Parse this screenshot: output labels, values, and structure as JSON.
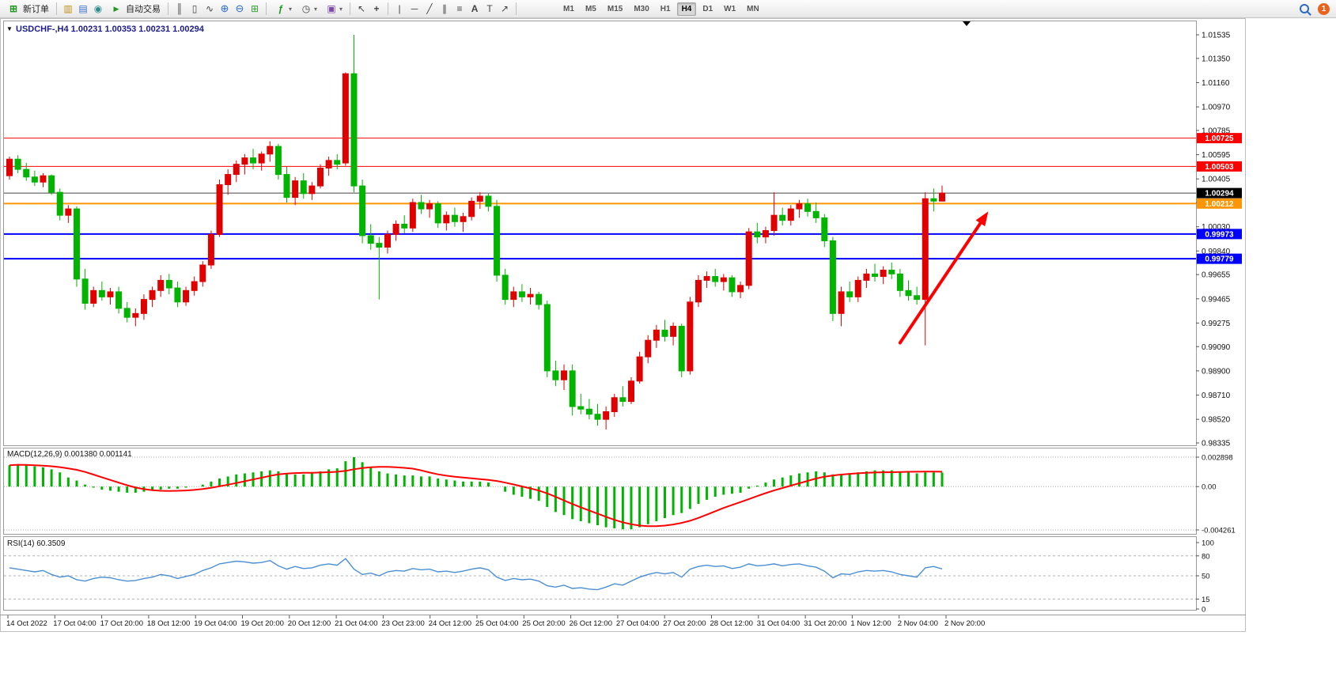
{
  "toolbar": {
    "new_order_label": "新订单",
    "autotrade_label": "自动交易",
    "notification_count": "1",
    "timeframes": [
      "M1",
      "M5",
      "M15",
      "M30",
      "H1",
      "H4",
      "D1",
      "W1",
      "MN"
    ],
    "active_timeframe": "H4",
    "icon_glyphs": {
      "new_order": "⊞",
      "market_watch": "▥",
      "data_window": "▤",
      "navigator": "◉",
      "autotrade": "▶",
      "bar_chart": "║",
      "candle_chart": "▯",
      "line_chart": "∿",
      "zoom_in": "⊕",
      "zoom_out": "⊖",
      "tile_windows": "⊞",
      "indicators": "ƒ",
      "periods": "◷",
      "templates": "▣",
      "cursor": "↖",
      "crosshair": "+",
      "vline": "|",
      "hline": "─",
      "trendline": "╱",
      "channel": "∥",
      "fibonacci": "≡",
      "text": "A",
      "text_label": "T",
      "arrows": "↗",
      "caret": "▾"
    }
  },
  "chart": {
    "symbol": "USDCHF-",
    "period": "H4",
    "collapse_icon_glyph": "▼",
    "ohlc": {
      "open": "1.00231",
      "high": "1.00353",
      "low": "1.00231",
      "close": "1.00294"
    }
  },
  "macd": {
    "name": "MACD(12,26,9)",
    "value_main": "0.001380",
    "value_signal": "0.001141",
    "scale": [
      {
        "label": "0.002898",
        "value": 0.002898
      },
      {
        "label": "0.00",
        "value": 0
      },
      {
        "label": "-0.004261",
        "value": -0.004261
      }
    ]
  },
  "rsi": {
    "name": "RSI(14)",
    "value": "60.3509",
    "scale": [
      {
        "label": "100",
        "value": 100
      },
      {
        "label": "80",
        "value": 80
      },
      {
        "label": "50",
        "value": 50
      },
      {
        "label": "15",
        "value": 15
      },
      {
        "label": "0",
        "value": 0
      }
    ]
  },
  "chart_data": {
    "type": "candlestick",
    "symbol": "USDCHF-",
    "timeframe": "H4",
    "ylim": [
      0.98335,
      1.01535
    ],
    "up_color": "#e00000",
    "down_color": "#00b400",
    "current_price": {
      "value": 1.00294,
      "label": "1.00294",
      "badge_color": "#000000"
    },
    "hlines": [
      {
        "price": 1.00725,
        "label": "1.00725",
        "color": "#ff0000",
        "width": 1
      },
      {
        "price": 1.00503,
        "label": "1.00503",
        "color": "#ff0000",
        "width": 1
      },
      {
        "price": 1.00212,
        "label": "1.00212",
        "color": "#ff9500",
        "width": 2
      },
      {
        "price": 0.99973,
        "label": "0.99973",
        "color": "#0000ff",
        "width": 2
      },
      {
        "price": 0.99779,
        "label": "0.99779",
        "color": "#0000ff",
        "width": 2
      }
    ],
    "price_scale_labels": [
      "1.01535",
      "1.01350",
      "1.01160",
      "1.00970",
      "1.00785",
      "1.00595",
      "1.00405",
      "1.00220",
      "1.00030",
      "0.99840",
      "0.99655",
      "0.99465",
      "0.99275",
      "0.99090",
      "0.98900",
      "0.98710",
      "0.98520",
      "0.98335"
    ],
    "x_labels": [
      "14 Oct 2022",
      "17 Oct 04:00",
      "17 Oct 20:00",
      "18 Oct 12:00",
      "19 Oct 04:00",
      "19 Oct 20:00",
      "20 Oct 12:00",
      "21 Oct 04:00",
      "23 Oct 23:00",
      "24 Oct 12:00",
      "25 Oct 04:00",
      "25 Oct 20:00",
      "26 Oct 12:00",
      "27 Oct 04:00",
      "27 Oct 20:00",
      "28 Oct 12:00",
      "31 Oct 04:00",
      "31 Oct 20:00",
      "1 Nov 12:00",
      "2 Nov 04:00",
      "2 Nov 20:00"
    ],
    "candles_ohlc": [
      [
        1.0043,
        1.0058,
        1.004,
        1.0056
      ],
      [
        1.0056,
        1.0059,
        1.0045,
        1.0048
      ],
      [
        1.0048,
        1.0053,
        1.0039,
        1.0042
      ],
      [
        1.0042,
        1.0047,
        1.0035,
        1.0038
      ],
      [
        1.0038,
        1.0045,
        1.0034,
        1.0043
      ],
      [
        1.0043,
        1.0044,
        1.0028,
        1.003
      ],
      [
        1.003,
        1.0033,
        1.0008,
        1.0012
      ],
      [
        1.0012,
        1.002,
        1.0006,
        1.0017
      ],
      [
        1.0017,
        1.0019,
        0.9956,
        0.9962
      ],
      [
        0.9962,
        0.997,
        0.9938,
        0.9943
      ],
      [
        0.9943,
        0.9956,
        0.994,
        0.9953
      ],
      [
        0.9953,
        0.996,
        0.9945,
        0.9948
      ],
      [
        0.9948,
        0.9955,
        0.9942,
        0.9952
      ],
      [
        0.9952,
        0.9956,
        0.9935,
        0.9939
      ],
      [
        0.9939,
        0.9944,
        0.9928,
        0.9932
      ],
      [
        0.9932,
        0.9939,
        0.9925,
        0.9935
      ],
      [
        0.9935,
        0.995,
        0.993,
        0.9946
      ],
      [
        0.9946,
        0.9956,
        0.994,
        0.9953
      ],
      [
        0.9953,
        0.9965,
        0.9948,
        0.9961
      ],
      [
        0.9961,
        0.9966,
        0.995,
        0.9955
      ],
      [
        0.9955,
        0.996,
        0.994,
        0.9944
      ],
      [
        0.9944,
        0.9956,
        0.9941,
        0.9953
      ],
      [
        0.9953,
        0.9964,
        0.9949,
        0.996
      ],
      [
        0.996,
        0.9976,
        0.9956,
        0.9973
      ],
      [
        0.9973,
        1.0,
        0.997,
        0.9997
      ],
      [
        0.9997,
        1.004,
        0.9995,
        1.0036
      ],
      [
        1.0036,
        1.0048,
        1.0028,
        1.0044
      ],
      [
        1.0044,
        1.0055,
        1.0038,
        1.0052
      ],
      [
        1.0052,
        1.006,
        1.0044,
        1.0057
      ],
      [
        1.0057,
        1.0064,
        1.0048,
        1.0053
      ],
      [
        1.0053,
        1.0062,
        1.0047,
        1.006
      ],
      [
        1.006,
        1.007,
        1.0054,
        1.0066
      ],
      [
        1.0066,
        1.0068,
        1.004,
        1.0044
      ],
      [
        1.0044,
        1.005,
        1.0022,
        1.0026
      ],
      [
        1.0026,
        1.0042,
        1.002,
        1.0039
      ],
      [
        1.0039,
        1.0045,
        1.0025,
        1.0029
      ],
      [
        1.0029,
        1.0038,
        1.0024,
        1.0035
      ],
      [
        1.0035,
        1.0052,
        1.0033,
        1.0049
      ],
      [
        1.0049,
        1.0058,
        1.0043,
        1.0055
      ],
      [
        1.0055,
        1.006,
        1.0048,
        1.0052
      ],
      [
        1.0053,
        1.0124,
        1.0051,
        1.0123
      ],
      [
        1.0123,
        1.01535,
        1.003,
        1.0035
      ],
      [
        1.0035,
        1.004,
        0.999,
        0.9996
      ],
      [
        0.9996,
        1.0005,
        0.9985,
        0.999
      ],
      [
        0.999,
        0.9995,
        0.9946,
        0.9987
      ],
      [
        0.9987,
        1.0,
        0.9982,
        0.9997
      ],
      [
        0.9997,
        1.0008,
        0.9992,
        1.0005
      ],
      [
        1.0005,
        1.0012,
        0.9998,
        1.0002
      ],
      [
        1.0002,
        1.0025,
        0.9999,
        1.0022
      ],
      [
        1.0022,
        1.0028,
        1.0013,
        1.0017
      ],
      [
        1.0017,
        1.0024,
        1.001,
        1.0021
      ],
      [
        1.0021,
        1.0023,
        1.0002,
        1.0006
      ],
      [
        1.0006,
        1.0015,
        1.0,
        1.0012
      ],
      [
        1.0012,
        1.0018,
        1.0003,
        1.0007
      ],
      [
        1.0007,
        1.0014,
        0.9999,
        1.0011
      ],
      [
        1.0011,
        1.0026,
        1.0008,
        1.0023
      ],
      [
        1.0023,
        1.003,
        1.0017,
        1.0027
      ],
      [
        1.0027,
        1.0029,
        1.0015,
        1.0019
      ],
      [
        1.0019,
        1.0024,
        0.996,
        0.9965
      ],
      [
        0.9965,
        0.997,
        0.9942,
        0.9946
      ],
      [
        0.9946,
        0.9956,
        0.994,
        0.9952
      ],
      [
        0.9952,
        0.9958,
        0.9944,
        0.9948
      ],
      [
        0.9948,
        0.9955,
        0.9942,
        0.995
      ],
      [
        0.995,
        0.9952,
        0.9938,
        0.9942
      ],
      [
        0.9942,
        0.9945,
        0.9885,
        0.989
      ],
      [
        0.989,
        0.9898,
        0.9878,
        0.9883
      ],
      [
        0.9883,
        0.9895,
        0.9875,
        0.989
      ],
      [
        0.989,
        0.9895,
        0.9855,
        0.9862
      ],
      [
        0.9862,
        0.9872,
        0.9856,
        0.986
      ],
      [
        0.986,
        0.9868,
        0.9852,
        0.9856
      ],
      [
        0.9856,
        0.9864,
        0.9847,
        0.9852
      ],
      [
        0.9852,
        0.9862,
        0.9844,
        0.9858
      ],
      [
        0.9858,
        0.9872,
        0.9854,
        0.9869
      ],
      [
        0.9869,
        0.9878,
        0.9862,
        0.9866
      ],
      [
        0.9866,
        0.9885,
        0.9864,
        0.9882
      ],
      [
        0.9882,
        0.9905,
        0.988,
        0.9901
      ],
      [
        0.9901,
        0.9918,
        0.9896,
        0.9914
      ],
      [
        0.9914,
        0.9926,
        0.9908,
        0.9922
      ],
      [
        0.9922,
        0.993,
        0.9913,
        0.9917
      ],
      [
        0.9917,
        0.9928,
        0.991,
        0.9925
      ],
      [
        0.9925,
        0.9927,
        0.9885,
        0.989
      ],
      [
        0.989,
        0.9948,
        0.9887,
        0.9944
      ],
      [
        0.9944,
        0.9965,
        0.994,
        0.9961
      ],
      [
        0.9961,
        0.9968,
        0.9955,
        0.9964
      ],
      [
        0.9964,
        0.997,
        0.9956,
        0.996
      ],
      [
        0.996,
        0.9966,
        0.9953,
        0.9963
      ],
      [
        0.9963,
        0.9965,
        0.9948,
        0.9952
      ],
      [
        0.9952,
        0.996,
        0.9947,
        0.9957
      ],
      [
        0.9957,
        1.0002,
        0.9954,
        0.9999
      ],
      [
        0.9999,
        1.0006,
        0.999,
        0.9995
      ],
      [
        0.9995,
        1.0003,
        0.999,
        1.0
      ],
      [
        1.0,
        1.003,
        0.9996,
        1.0012
      ],
      [
        1.0012,
        1.0018,
        1.0004,
        1.0008
      ],
      [
        1.0008,
        1.002,
        1.0004,
        1.0017
      ],
      [
        1.0017,
        1.0024,
        1.001,
        1.0021
      ],
      [
        1.0021,
        1.0025,
        1.0011,
        1.0015
      ],
      [
        1.0015,
        1.0022,
        1.0006,
        1.001
      ],
      [
        1.001,
        1.0013,
        0.9987,
        0.9992
      ],
      [
        0.9992,
        0.9995,
        0.9929,
        0.9935
      ],
      [
        0.9935,
        0.9956,
        0.9925,
        0.9952
      ],
      [
        0.9952,
        0.996,
        0.9944,
        0.9948
      ],
      [
        0.9948,
        0.9964,
        0.9944,
        0.9961
      ],
      [
        0.9961,
        0.997,
        0.9955,
        0.9966
      ],
      [
        0.9966,
        0.9974,
        0.996,
        0.9964
      ],
      [
        0.9964,
        0.9972,
        0.9958,
        0.9969
      ],
      [
        0.9969,
        0.9975,
        0.9962,
        0.9966
      ],
      [
        0.9966,
        0.997,
        0.9948,
        0.9953
      ],
      [
        0.9953,
        0.9961,
        0.9945,
        0.9949
      ],
      [
        0.9949,
        0.9956,
        0.9942,
        0.9946
      ],
      [
        0.9946,
        1.003,
        0.991,
        1.0025
      ],
      [
        1.0025,
        1.0033,
        1.0015,
        1.00231
      ],
      [
        1.00231,
        1.00353,
        1.00231,
        1.00294
      ]
    ],
    "indicators": [
      {
        "name": "MACD(12,26,9)",
        "type": "histogram",
        "color": "#00b400",
        "signal_color": "#ff0000",
        "ylim": [
          -0.004261,
          0.002898
        ],
        "values": [
          0.0021,
          0.0022,
          0.0021,
          0.002,
          0.0019,
          0.0017,
          0.0014,
          0.0009,
          0.0006,
          0.0002,
          -0.0001,
          -0.0003,
          -0.0004,
          -0.0005,
          -0.0006,
          -0.0006,
          -0.0005,
          -0.0004,
          -0.0003,
          -0.0002,
          -0.0002,
          -0.0001,
          0.0,
          0.0002,
          0.0005,
          0.0008,
          0.001,
          0.0012,
          0.0013,
          0.0014,
          0.0015,
          0.0016,
          0.0015,
          0.0013,
          0.0012,
          0.0012,
          0.0013,
          0.0015,
          0.0017,
          0.0018,
          0.0025,
          0.0029,
          0.0024,
          0.0019,
          0.0015,
          0.0013,
          0.0012,
          0.0011,
          0.0011,
          0.001,
          0.001,
          0.0008,
          0.0007,
          0.0006,
          0.0005,
          0.0005,
          0.0005,
          0.0004,
          0.0,
          -0.0005,
          -0.0008,
          -0.001,
          -0.0012,
          -0.0014,
          -0.002,
          -0.0025,
          -0.0028,
          -0.0032,
          -0.0034,
          -0.0036,
          -0.0038,
          -0.004,
          -0.0041,
          -0.0042,
          -0.0042,
          -0.004,
          -0.0037,
          -0.0034,
          -0.0031,
          -0.0028,
          -0.0026,
          -0.0022,
          -0.0017,
          -0.0013,
          -0.001,
          -0.0008,
          -0.0007,
          -0.0006,
          -0.0002,
          0.0001,
          0.0004,
          0.0007,
          0.0009,
          0.0011,
          0.0013,
          0.0014,
          0.0015,
          0.0014,
          0.0012,
          0.0012,
          0.0013,
          0.0014,
          0.0015,
          0.0016,
          0.0016,
          0.0016,
          0.0015,
          0.0014,
          0.0013,
          0.0014,
          0.0014,
          0.00138
        ]
      },
      {
        "name": "RSI(14)",
        "type": "line",
        "color": "#4a8fd4",
        "levels": [
          80,
          50,
          15
        ],
        "ylim": [
          0,
          100
        ],
        "values": [
          62,
          60,
          58,
          56,
          58,
          52,
          48,
          50,
          44,
          42,
          46,
          48,
          47,
          44,
          42,
          43,
          46,
          48,
          52,
          50,
          46,
          49,
          52,
          58,
          62,
          68,
          70,
          72,
          71,
          69,
          70,
          73,
          65,
          60,
          64,
          61,
          62,
          66,
          68,
          66,
          76,
          60,
          52,
          54,
          50,
          56,
          58,
          57,
          61,
          59,
          60,
          56,
          57,
          55,
          57,
          60,
          62,
          59,
          48,
          43,
          46,
          44,
          45,
          42,
          35,
          33,
          36,
          31,
          32,
          30,
          29,
          33,
          38,
          36,
          42,
          48,
          52,
          55,
          53,
          55,
          48,
          60,
          64,
          66,
          64,
          65,
          61,
          63,
          68,
          65,
          66,
          68,
          65,
          67,
          68,
          65,
          63,
          57,
          47,
          53,
          52,
          56,
          58,
          57,
          58,
          56,
          52,
          50,
          48,
          62,
          64,
          60.35
        ]
      }
    ],
    "annotations": [
      {
        "type": "arrow",
        "color": "#ff0000",
        "width": 4,
        "from_index": 106,
        "from_price": 0.9912,
        "to_index": 116.5,
        "to_price": 1.0015
      }
    ]
  }
}
